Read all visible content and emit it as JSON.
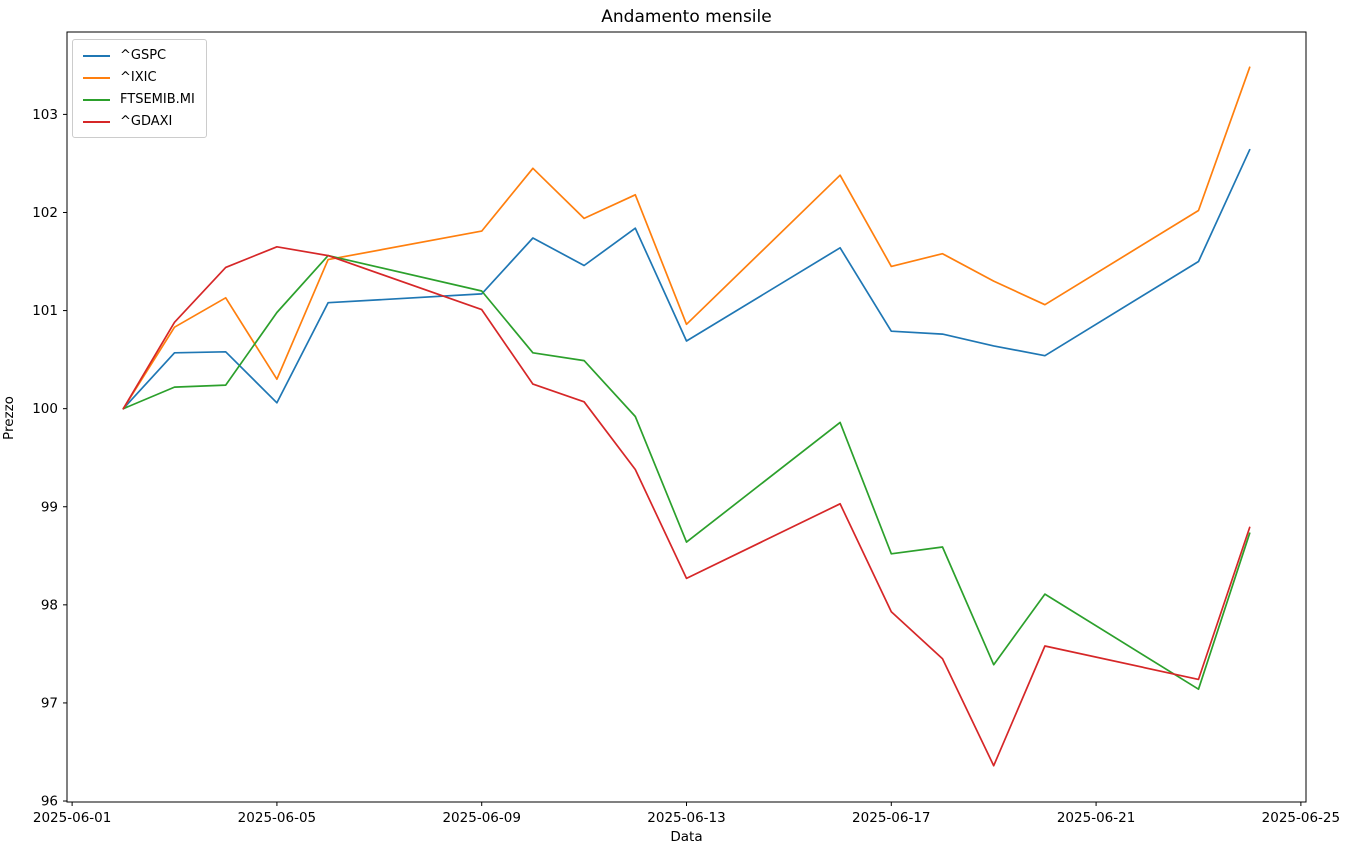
{
  "figure": {
    "title": "Andamento mensile"
  },
  "chart_data": {
    "type": "line",
    "title": "Andamento mensile",
    "xlabel": "Data",
    "ylabel": "Prezzo",
    "grid": false,
    "legend_position": "upper left",
    "x_dates": [
      "2025-06-02",
      "2025-06-03",
      "2025-06-04",
      "2025-06-05",
      "2025-06-06",
      "2025-06-09",
      "2025-06-10",
      "2025-06-11",
      "2025-06-12",
      "2025-06-13",
      "2025-06-16",
      "2025-06-17",
      "2025-06-18",
      "2025-06-19",
      "2025-06-20",
      "2025-06-23",
      "2025-06-24"
    ],
    "x_days": [
      2,
      3,
      4,
      5,
      6,
      9,
      10,
      11,
      12,
      13,
      16,
      17,
      18,
      19,
      20,
      23,
      24
    ],
    "x_axis": {
      "range": [
        0.9,
        25.1
      ],
      "tick_days": [
        1,
        5,
        9,
        13,
        17,
        21,
        25
      ],
      "tick_labels": [
        "2025-06-01",
        "2025-06-05",
        "2025-06-09",
        "2025-06-13",
        "2025-06-17",
        "2025-06-21",
        "2025-06-25"
      ]
    },
    "y_axis": {
      "range": [
        95.99,
        103.84
      ],
      "ticks": [
        96,
        97,
        98,
        99,
        100,
        101,
        102,
        103
      ]
    },
    "series": [
      {
        "name": "^GSPC",
        "color": "#1f77b4",
        "values": [
          100.0,
          100.57,
          100.58,
          100.06,
          101.08,
          101.17,
          101.74,
          101.46,
          101.84,
          100.69,
          101.64,
          100.79,
          100.76,
          100.64,
          100.54,
          101.5,
          102.64
        ]
      },
      {
        "name": "^IXIC",
        "color": "#ff7f0e",
        "values": [
          100.0,
          100.83,
          101.13,
          100.3,
          101.52,
          101.81,
          102.45,
          101.94,
          102.18,
          100.86,
          102.38,
          101.45,
          101.58,
          101.3,
          101.06,
          102.02,
          103.48
        ]
      },
      {
        "name": "FTSEMIB.MI",
        "color": "#2ca02c",
        "values": [
          100.0,
          100.22,
          100.24,
          100.98,
          101.56,
          101.2,
          100.57,
          100.49,
          99.92,
          98.64,
          99.86,
          98.52,
          98.59,
          97.39,
          98.11,
          97.14,
          98.73
        ]
      },
      {
        "name": "^GDAXI",
        "color": "#d62728",
        "values": [
          100.0,
          100.88,
          101.44,
          101.65,
          101.56,
          101.01,
          100.25,
          100.07,
          99.38,
          98.27,
          99.03,
          97.93,
          97.45,
          96.36,
          97.58,
          97.24,
          98.79
        ]
      }
    ]
  }
}
